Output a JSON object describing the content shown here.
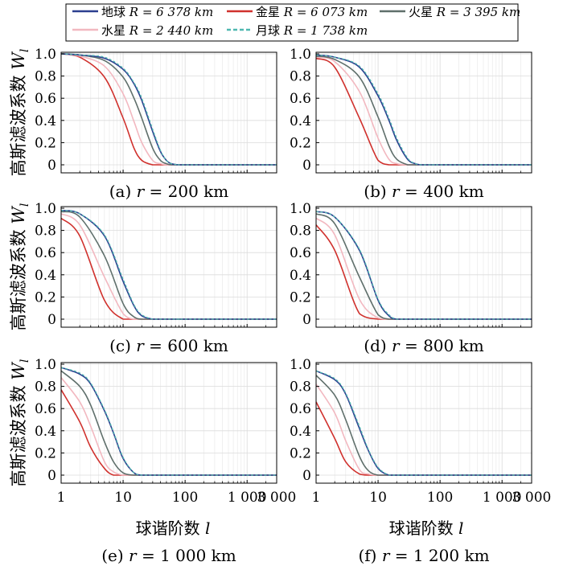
{
  "legend": [
    {
      "key": "earth",
      "name": "地球",
      "radius_label": "R = 6 378 km",
      "color": "#2b3f8f",
      "dashed": false
    },
    {
      "key": "venus",
      "name": "金星",
      "radius_label": "R = 6 073 km",
      "color": "#d0312d",
      "dashed": false
    },
    {
      "key": "mars",
      "name": "火星",
      "radius_label": "R = 3 395 km",
      "color": "#5f6f6b",
      "dashed": false
    },
    {
      "key": "mercury",
      "name": "水星",
      "radius_label": "R = 2 440 km",
      "color": "#f2b8c0",
      "dashed": false
    },
    {
      "key": "moon",
      "name": "月球",
      "radius_label": "R = 1 738 km",
      "color": "#4fb8b0",
      "dashed": true
    }
  ],
  "y_axis_label": "高斯滤波系数",
  "y_axis_symbol": "W",
  "y_axis_subscript": "l",
  "x_axis_label": "球谐阶数",
  "x_axis_symbol": "l",
  "chart_data": [
    {
      "type": "line",
      "caption": "(a) r = 200 km",
      "x_scale": "log",
      "xlim": [
        1,
        3000
      ],
      "ylim": [
        0,
        1
      ],
      "xticks": [
        "1",
        "10",
        "100",
        "1 000",
        "3 000"
      ],
      "yticks": [
        "0",
        "0.2",
        "0.4",
        "0.6",
        "0.8",
        "1.0"
      ],
      "x": [
        1,
        2,
        5,
        10,
        15,
        20,
        30,
        40,
        50,
        60,
        80,
        100,
        3000
      ],
      "series": [
        {
          "name": "地球",
          "values": [
            1.0,
            0.99,
            0.96,
            0.86,
            0.73,
            0.58,
            0.3,
            0.12,
            0.04,
            0.01,
            0.0,
            0.0,
            0.0
          ]
        },
        {
          "name": "金星",
          "values": [
            1.0,
            0.97,
            0.79,
            0.42,
            0.15,
            0.04,
            0.0,
            0.0,
            0.0,
            0.0,
            0.0,
            0.0,
            0.0
          ]
        },
        {
          "name": "火星",
          "values": [
            1.0,
            0.99,
            0.94,
            0.79,
            0.6,
            0.42,
            0.15,
            0.04,
            0.01,
            0.0,
            0.0,
            0.0,
            0.0
          ]
        },
        {
          "name": "水星",
          "values": [
            1.0,
            0.98,
            0.89,
            0.64,
            0.39,
            0.2,
            0.04,
            0.01,
            0.0,
            0.0,
            0.0,
            0.0,
            0.0
          ]
        },
        {
          "name": "月球",
          "values": [
            1.0,
            0.99,
            0.97,
            0.87,
            0.74,
            0.6,
            0.32,
            0.13,
            0.04,
            0.01,
            0.0,
            0.0,
            0.0
          ]
        }
      ]
    },
    {
      "type": "line",
      "caption": "(b) r = 400 km",
      "x_scale": "log",
      "xlim": [
        1,
        3000
      ],
      "ylim": [
        0,
        1
      ],
      "xticks": [
        "1",
        "10",
        "100",
        "1 000",
        "3 000"
      ],
      "yticks": [
        "0",
        "0.2",
        "0.4",
        "0.6",
        "0.8",
        "1.0"
      ],
      "x": [
        1,
        2,
        5,
        10,
        15,
        20,
        30,
        40,
        50,
        60,
        80,
        100,
        3000
      ],
      "series": [
        {
          "name": "地球",
          "values": [
            0.99,
            0.97,
            0.88,
            0.62,
            0.4,
            0.22,
            0.05,
            0.01,
            0.0,
            0.0,
            0.0,
            0.0,
            0.0
          ]
        },
        {
          "name": "金星",
          "values": [
            0.96,
            0.88,
            0.42,
            0.04,
            0.0,
            0.0,
            0.0,
            0.0,
            0.0,
            0.0,
            0.0,
            0.0,
            0.0
          ]
        },
        {
          "name": "火星",
          "values": [
            0.98,
            0.95,
            0.79,
            0.43,
            0.17,
            0.05,
            0.0,
            0.0,
            0.0,
            0.0,
            0.0,
            0.0,
            0.0
          ]
        },
        {
          "name": "水星",
          "values": [
            0.97,
            0.93,
            0.66,
            0.24,
            0.05,
            0.01,
            0.0,
            0.0,
            0.0,
            0.0,
            0.0,
            0.0,
            0.0
          ]
        },
        {
          "name": "月球",
          "values": [
            0.99,
            0.97,
            0.89,
            0.64,
            0.42,
            0.24,
            0.06,
            0.01,
            0.0,
            0.0,
            0.0,
            0.0,
            0.0
          ]
        }
      ]
    },
    {
      "type": "line",
      "caption": "(c) r = 600 km",
      "x_scale": "log",
      "xlim": [
        1,
        3000
      ],
      "ylim": [
        0,
        1
      ],
      "xticks": [
        "1",
        "10",
        "100",
        "1 000",
        "3 000"
      ],
      "yticks": [
        "0",
        "0.2",
        "0.4",
        "0.6",
        "0.8",
        "1.0"
      ],
      "x": [
        1,
        2,
        5,
        10,
        15,
        20,
        30,
        40,
        50,
        60,
        80,
        100,
        3000
      ],
      "series": [
        {
          "name": "地球",
          "values": [
            0.98,
            0.95,
            0.75,
            0.34,
            0.12,
            0.03,
            0.0,
            0.0,
            0.0,
            0.0,
            0.0,
            0.0,
            0.0
          ]
        },
        {
          "name": "金星",
          "values": [
            0.91,
            0.75,
            0.17,
            0.0,
            0.0,
            0.0,
            0.0,
            0.0,
            0.0,
            0.0,
            0.0,
            0.0,
            0.0
          ]
        },
        {
          "name": "火星",
          "values": [
            0.97,
            0.92,
            0.57,
            0.14,
            0.02,
            0.0,
            0.0,
            0.0,
            0.0,
            0.0,
            0.0,
            0.0,
            0.0
          ]
        },
        {
          "name": "水星",
          "values": [
            0.95,
            0.85,
            0.38,
            0.05,
            0.0,
            0.0,
            0.0,
            0.0,
            0.0,
            0.0,
            0.0,
            0.0,
            0.0
          ]
        },
        {
          "name": "月球",
          "values": [
            0.98,
            0.95,
            0.76,
            0.36,
            0.13,
            0.04,
            0.0,
            0.0,
            0.0,
            0.0,
            0.0,
            0.0,
            0.0
          ]
        }
      ]
    },
    {
      "type": "line",
      "caption": "(d) r = 800 km",
      "x_scale": "log",
      "xlim": [
        1,
        3000
      ],
      "ylim": [
        0,
        1
      ],
      "xticks": [
        "1",
        "10",
        "100",
        "1 000",
        "3 000"
      ],
      "yticks": [
        "0",
        "0.2",
        "0.4",
        "0.6",
        "0.8",
        "1.0"
      ],
      "x": [
        1,
        2,
        5,
        10,
        15,
        20,
        30,
        40,
        50,
        60,
        80,
        100,
        3000
      ],
      "series": [
        {
          "name": "地球",
          "values": [
            0.97,
            0.92,
            0.62,
            0.17,
            0.03,
            0.0,
            0.0,
            0.0,
            0.0,
            0.0,
            0.0,
            0.0,
            0.0
          ]
        },
        {
          "name": "金星",
          "values": [
            0.85,
            0.62,
            0.05,
            0.0,
            0.0,
            0.0,
            0.0,
            0.0,
            0.0,
            0.0,
            0.0,
            0.0,
            0.0
          ]
        },
        {
          "name": "火星",
          "values": [
            0.95,
            0.86,
            0.38,
            0.04,
            0.0,
            0.0,
            0.0,
            0.0,
            0.0,
            0.0,
            0.0,
            0.0,
            0.0
          ]
        },
        {
          "name": "水星",
          "values": [
            0.91,
            0.76,
            0.18,
            0.01,
            0.0,
            0.0,
            0.0,
            0.0,
            0.0,
            0.0,
            0.0,
            0.0,
            0.0
          ]
        },
        {
          "name": "月球",
          "values": [
            0.97,
            0.92,
            0.63,
            0.18,
            0.04,
            0.0,
            0.0,
            0.0,
            0.0,
            0.0,
            0.0,
            0.0,
            0.0
          ]
        }
      ]
    },
    {
      "type": "line",
      "caption": "(e) r = 1 000 km",
      "x_scale": "log",
      "xlim": [
        1,
        3000
      ],
      "ylim": [
        0,
        1
      ],
      "xticks": [
        "1",
        "10",
        "100",
        "1 000",
        "3 000"
      ],
      "yticks": [
        "0",
        "0.2",
        "0.4",
        "0.6",
        "0.8",
        "1.0"
      ],
      "x": [
        1,
        2,
        3,
        5,
        7,
        10,
        15,
        20,
        30,
        50,
        100,
        3000
      ],
      "series": [
        {
          "name": "地球",
          "values": [
            0.97,
            0.91,
            0.82,
            0.58,
            0.38,
            0.15,
            0.02,
            0.0,
            0.0,
            0.0,
            0.0,
            0.0
          ]
        },
        {
          "name": "金星",
          "values": [
            0.77,
            0.48,
            0.25,
            0.06,
            0.0,
            0.0,
            0.0,
            0.0,
            0.0,
            0.0,
            0.0,
            0.0
          ]
        },
        {
          "name": "火星",
          "values": [
            0.94,
            0.8,
            0.63,
            0.3,
            0.12,
            0.02,
            0.0,
            0.0,
            0.0,
            0.0,
            0.0,
            0.0
          ]
        },
        {
          "name": "水星",
          "values": [
            0.88,
            0.66,
            0.44,
            0.12,
            0.03,
            0.0,
            0.0,
            0.0,
            0.0,
            0.0,
            0.0,
            0.0
          ]
        },
        {
          "name": "月球",
          "values": [
            0.97,
            0.92,
            0.83,
            0.59,
            0.39,
            0.16,
            0.02,
            0.0,
            0.0,
            0.0,
            0.0,
            0.0
          ]
        }
      ]
    },
    {
      "type": "line",
      "caption": "(f) r = 1 200 km",
      "x_scale": "log",
      "xlim": [
        1,
        3000
      ],
      "ylim": [
        0,
        1
      ],
      "xticks": [
        "1",
        "10",
        "100",
        "1 000",
        "3 000"
      ],
      "yticks": [
        "0",
        "0.2",
        "0.4",
        "0.6",
        "0.8",
        "1.0"
      ],
      "x": [
        1,
        2,
        3,
        5,
        7,
        10,
        15,
        20,
        30,
        50,
        100,
        3000
      ],
      "series": [
        {
          "name": "地球",
          "values": [
            0.94,
            0.86,
            0.73,
            0.42,
            0.22,
            0.06,
            0.0,
            0.0,
            0.0,
            0.0,
            0.0,
            0.0
          ]
        },
        {
          "name": "金星",
          "values": [
            0.66,
            0.33,
            0.12,
            0.01,
            0.0,
            0.0,
            0.0,
            0.0,
            0.0,
            0.0,
            0.0,
            0.0
          ]
        },
        {
          "name": "火星",
          "values": [
            0.9,
            0.72,
            0.5,
            0.17,
            0.04,
            0.0,
            0.0,
            0.0,
            0.0,
            0.0,
            0.0,
            0.0
          ]
        },
        {
          "name": "水星",
          "values": [
            0.82,
            0.56,
            0.31,
            0.05,
            0.01,
            0.0,
            0.0,
            0.0,
            0.0,
            0.0,
            0.0,
            0.0
          ]
        },
        {
          "name": "月球",
          "values": [
            0.94,
            0.87,
            0.74,
            0.44,
            0.23,
            0.07,
            0.0,
            0.0,
            0.0,
            0.0,
            0.0,
            0.0
          ]
        }
      ]
    }
  ]
}
